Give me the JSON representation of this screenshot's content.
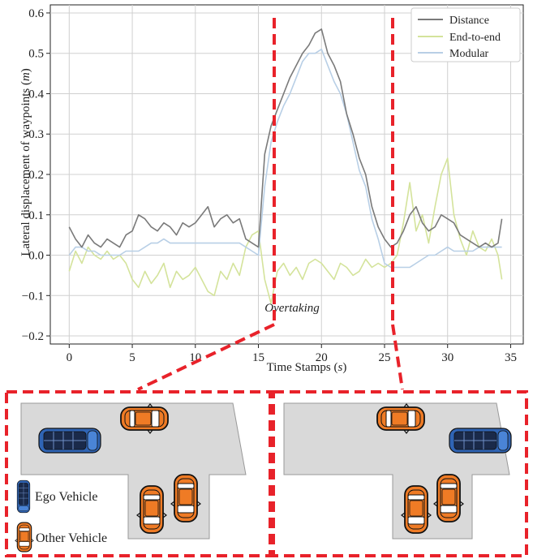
{
  "chart_data": {
    "type": "line",
    "xlabel": "Time Stamps",
    "xlabel_unit": "s",
    "ylabel": "Lateral displacement of waypoints",
    "ylabel_unit": "m",
    "xlim": [
      -1.5,
      36
    ],
    "ylim": [
      -0.22,
      0.62
    ],
    "xticks": [
      0,
      5,
      10,
      15,
      20,
      25,
      30,
      35
    ],
    "yticks": [
      -0.2,
      -0.1,
      0.0,
      0.1,
      0.2,
      0.3,
      0.4,
      0.5,
      0.6
    ],
    "ytick_labels": [
      "−0.2",
      "−0.1",
      "0.0",
      "0.1",
      "0.2",
      "0.3",
      "0.4",
      "0.5",
      "0.6"
    ],
    "grid": true,
    "legend_position": "top-right",
    "series": [
      {
        "name": "Distance",
        "color": "#7a7a7a",
        "x": [
          0,
          0.5,
          1,
          1.5,
          2,
          2.5,
          3,
          3.5,
          4,
          4.5,
          5,
          5.5,
          6,
          6.5,
          7,
          7.5,
          8,
          8.5,
          9,
          9.5,
          10,
          10.5,
          11,
          11.5,
          12,
          12.5,
          13,
          13.5,
          14,
          14.5,
          15,
          15.5,
          16,
          16.5,
          17,
          17.5,
          18,
          18.5,
          19,
          19.5,
          20,
          20.5,
          21,
          21.5,
          22,
          22.5,
          23,
          23.5,
          24,
          24.5,
          25,
          25.5,
          26,
          26.5,
          27,
          27.5,
          28,
          28.5,
          29,
          29.5,
          30,
          30.5,
          31,
          31.5,
          32,
          32.5,
          33,
          33.5,
          34,
          34.3
        ],
        "y": [
          0.07,
          0.04,
          0.02,
          0.05,
          0.03,
          0.02,
          0.04,
          0.03,
          0.02,
          0.05,
          0.06,
          0.1,
          0.09,
          0.07,
          0.06,
          0.08,
          0.07,
          0.05,
          0.08,
          0.07,
          0.08,
          0.1,
          0.12,
          0.07,
          0.09,
          0.1,
          0.08,
          0.09,
          0.04,
          0.03,
          0.02,
          0.25,
          0.32,
          0.36,
          0.4,
          0.44,
          0.47,
          0.5,
          0.52,
          0.55,
          0.56,
          0.5,
          0.47,
          0.43,
          0.35,
          0.3,
          0.24,
          0.2,
          0.12,
          0.07,
          0.04,
          0.02,
          0.03,
          0.06,
          0.1,
          0.12,
          0.08,
          0.06,
          0.07,
          0.1,
          0.09,
          0.08,
          0.05,
          0.04,
          0.03,
          0.02,
          0.03,
          0.02,
          0.03,
          0.09
        ]
      },
      {
        "name": "End-to-end",
        "color": "#d4e39b",
        "x": [
          0,
          0.5,
          1,
          1.5,
          2,
          2.5,
          3,
          3.5,
          4,
          4.5,
          5,
          5.5,
          6,
          6.5,
          7,
          7.5,
          8,
          8.5,
          9,
          9.5,
          10,
          10.5,
          11,
          11.5,
          12,
          12.5,
          13,
          13.5,
          14,
          14.5,
          15,
          15.5,
          16,
          16.5,
          17,
          17.5,
          18,
          18.5,
          19,
          19.5,
          20,
          20.5,
          21,
          21.5,
          22,
          22.5,
          23,
          23.5,
          24,
          24.5,
          25,
          25.5,
          26,
          26.5,
          27,
          27.5,
          28,
          28.5,
          29,
          29.5,
          30,
          30.5,
          31,
          31.5,
          32,
          32.5,
          33,
          33.5,
          34,
          34.3
        ],
        "y": [
          -0.04,
          0.01,
          -0.02,
          0.02,
          0.0,
          -0.01,
          0.01,
          -0.01,
          0.0,
          -0.02,
          -0.06,
          -0.08,
          -0.04,
          -0.07,
          -0.05,
          -0.02,
          -0.08,
          -0.04,
          -0.06,
          -0.05,
          -0.03,
          -0.06,
          -0.09,
          -0.1,
          -0.04,
          -0.06,
          -0.02,
          -0.05,
          0.02,
          0.05,
          0.06,
          -0.06,
          -0.12,
          -0.04,
          -0.02,
          -0.05,
          -0.03,
          -0.06,
          -0.02,
          -0.01,
          -0.02,
          -0.04,
          -0.06,
          -0.02,
          -0.03,
          -0.05,
          -0.04,
          -0.01,
          -0.03,
          -0.02,
          -0.03,
          -0.02,
          0.0,
          0.08,
          0.18,
          0.06,
          0.1,
          0.03,
          0.12,
          0.2,
          0.24,
          0.1,
          0.04,
          0.0,
          0.06,
          0.02,
          0.01,
          0.04,
          0.0,
          -0.06
        ]
      },
      {
        "name": "Modular",
        "color": "#b8cfe6",
        "x": [
          0,
          0.5,
          1,
          1.5,
          2,
          2.5,
          3,
          3.5,
          4,
          4.5,
          5,
          5.5,
          6,
          6.5,
          7,
          7.5,
          8,
          8.5,
          9,
          9.5,
          10,
          10.5,
          11,
          11.5,
          12,
          12.5,
          13,
          13.5,
          14,
          14.5,
          15,
          15.5,
          16,
          16.5,
          17,
          17.5,
          18,
          18.5,
          19,
          19.5,
          20,
          20.5,
          21,
          21.5,
          22,
          22.5,
          23,
          23.5,
          24,
          24.5,
          25,
          25.5,
          26,
          26.5,
          27,
          27.5,
          28,
          28.5,
          29,
          29.5,
          30,
          30.5,
          31,
          31.5,
          32,
          32.5,
          33,
          33.5,
          34,
          34.3
        ],
        "y": [
          0.0,
          0.02,
          0.02,
          0.01,
          0.01,
          0.0,
          0.0,
          0.0,
          0.0,
          0.01,
          0.01,
          0.01,
          0.02,
          0.03,
          0.03,
          0.04,
          0.03,
          0.03,
          0.03,
          0.03,
          0.03,
          0.03,
          0.03,
          0.03,
          0.03,
          0.03,
          0.03,
          0.03,
          0.02,
          0.01,
          0.0,
          0.17,
          0.28,
          0.33,
          0.37,
          0.4,
          0.44,
          0.48,
          0.5,
          0.5,
          0.51,
          0.47,
          0.43,
          0.4,
          0.35,
          0.28,
          0.21,
          0.17,
          0.09,
          0.04,
          -0.02,
          -0.03,
          -0.03,
          -0.03,
          -0.03,
          -0.02,
          -0.01,
          0.0,
          0.0,
          0.01,
          0.02,
          0.01,
          0.01,
          0.01,
          0.01,
          0.02,
          0.02,
          0.02,
          0.02,
          0.02
        ]
      }
    ],
    "annotations": [
      {
        "text": "Overtaking",
        "x": 15.5,
        "y": -0.14
      }
    ],
    "markers": [
      {
        "x": 15,
        "color": "#e8222a",
        "style": "dashed"
      },
      {
        "x": 25,
        "color": "#e8222a",
        "style": "dashed"
      }
    ]
  },
  "scene_legend": {
    "ego_label": "Ego Vehicle",
    "other_label": "Other Vehicle"
  },
  "colors": {
    "highlight": "#e8222a",
    "road": "#d9d9d9",
    "ego_car": "#2f64b4",
    "other_car": "#ef7b25"
  }
}
